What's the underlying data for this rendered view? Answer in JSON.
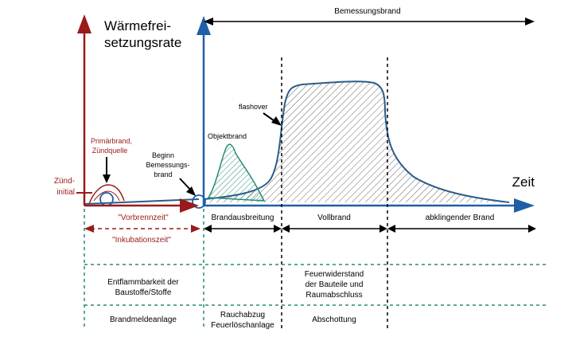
{
  "labels": {
    "y_axis_line1": "Wärmefrei-",
    "y_axis_line2": "setzungsrate",
    "x_axis": "Zeit",
    "bemessungsbrand": "Bemessungsbrand",
    "flashover": "flashover",
    "objektbrand": "Objektbrand",
    "primaerbrand_1": "Primärbrand,",
    "primaerbrand_2": "Zündquelle",
    "beginn_1": "Beginn",
    "beginn_2": "Bemessungs-",
    "beginn_3": "brand",
    "zuend_1": "Zünd-",
    "zuend_2": "initial",
    "vorbrennzeit": "\"Vorbrennzeit\"",
    "inkubationszeit": "\"Inkubationszeit\""
  },
  "phases": {
    "brandausbreitung": "Brandausbreitung",
    "vollbrand": "Vollbrand",
    "abklingender_brand": "abklingender Brand"
  },
  "measures": {
    "entflammbarkeit_1": "Entflammbarkeit der",
    "entflammbarkeit_2": "Baustoffe/Stoffe",
    "feuerwiderstand_1": "Feuerwiderstand",
    "feuerwiderstand_2": "der Bauteile und",
    "feuerwiderstand_3": "Raumabschluss",
    "brandmeldeanlage": "Brandmeldeanlage",
    "rauchabzug_1": "Rauchabzug",
    "rauchabzug_2": "Feuerlöschanlage",
    "abschottung": "Abschottung"
  },
  "colors": {
    "red": "#9b1a1a",
    "blue": "#1f5fa8",
    "curve": "#2a5d8a",
    "teal": "#2a8a7a",
    "hatch": "#555555"
  }
}
